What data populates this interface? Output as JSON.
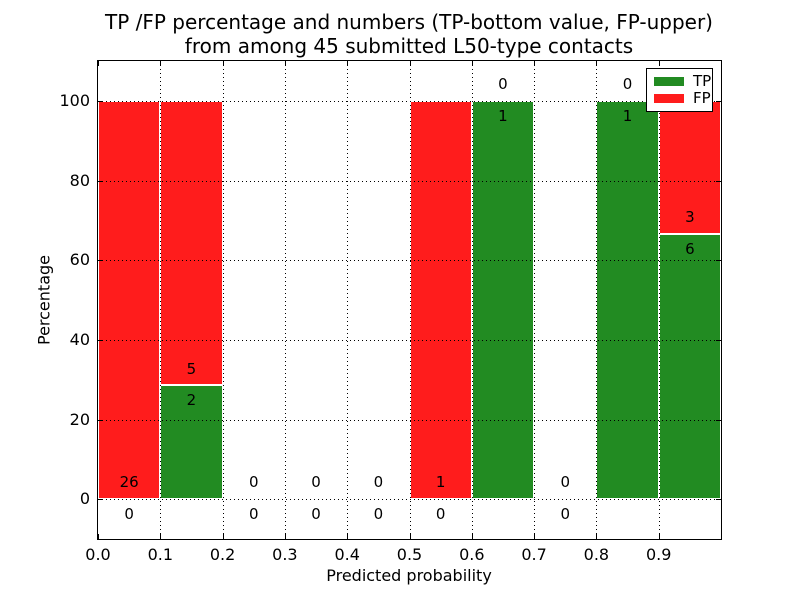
{
  "chart_data": {
    "type": "bar",
    "stacked": true,
    "title_line1": "TP /FP percentage and numbers (TP-bottom value, FP-upper)",
    "title_line2": "from among 45 submitted L50-type contacts",
    "xlabel": "Predicted probability",
    "ylabel": "Percentage",
    "xlim": [
      0.0,
      1.0
    ],
    "ylim": [
      -10,
      110
    ],
    "grid": "dotted black, both axes, drawn above bars",
    "x_tick_labels": [
      "0.0",
      "0.1",
      "0.2",
      "0.3",
      "0.4",
      "0.5",
      "0.6",
      "0.7",
      "0.8",
      "0.9"
    ],
    "x_tick_values": [
      0.0,
      0.1,
      0.2,
      0.3,
      0.4,
      0.5,
      0.6,
      0.7,
      0.8,
      0.9
    ],
    "y_tick_labels": [
      "0",
      "20",
      "40",
      "60",
      "80",
      "100"
    ],
    "y_tick_values": [
      0,
      20,
      40,
      60,
      80,
      100
    ],
    "colors": {
      "tp": "#228b22",
      "fp": "#ff1c1c",
      "bar_edge": "#ffffff"
    },
    "legend": {
      "position": "upper right",
      "entries": [
        {
          "label": "TP",
          "color": "#228b22"
        },
        {
          "label": "FP",
          "color": "#ff1c1c"
        }
      ]
    },
    "bins": [
      {
        "range": [
          0.0,
          0.1
        ],
        "tp": 0,
        "fp": 26
      },
      {
        "range": [
          0.1,
          0.2
        ],
        "tp": 2,
        "fp": 5
      },
      {
        "range": [
          0.2,
          0.3
        ],
        "tp": 0,
        "fp": 0
      },
      {
        "range": [
          0.3,
          0.4
        ],
        "tp": 0,
        "fp": 0
      },
      {
        "range": [
          0.4,
          0.5
        ],
        "tp": 0,
        "fp": 0
      },
      {
        "range": [
          0.5,
          0.6
        ],
        "tp": 0,
        "fp": 1
      },
      {
        "range": [
          0.6,
          0.7
        ],
        "tp": 1,
        "fp": 0
      },
      {
        "range": [
          0.7,
          0.8
        ],
        "tp": 0,
        "fp": 0
      },
      {
        "range": [
          0.8,
          0.9
        ],
        "tp": 1,
        "fp": 0
      },
      {
        "range": [
          0.9,
          1.0
        ],
        "tp": 6,
        "fp": 3
      }
    ]
  }
}
